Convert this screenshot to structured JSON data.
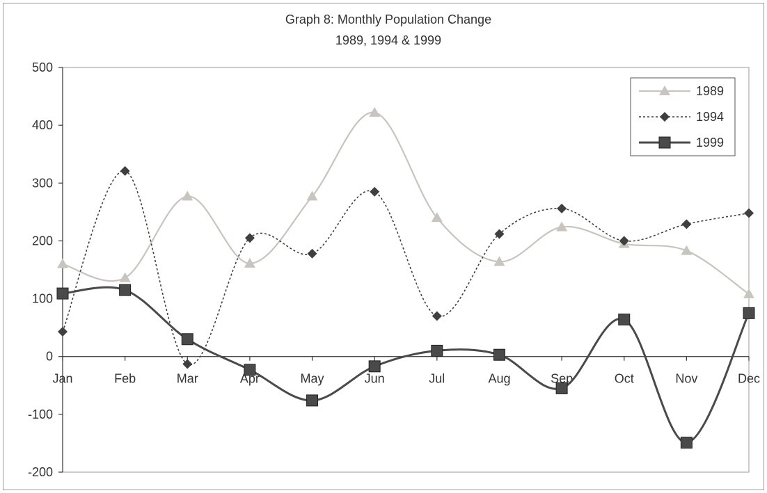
{
  "chart_data": {
    "type": "line",
    "title": "Graph 8: Monthly Population Change",
    "subtitle": "1989, 1994 & 1999",
    "categories": [
      "Jan",
      "Feb",
      "Mar",
      "Apr",
      "May",
      "Jun",
      "Jul",
      "Aug",
      "Sep",
      "Oct",
      "Nov",
      "Dec"
    ],
    "ylim": [
      -200,
      500
    ],
    "yticks": [
      -200,
      -100,
      0,
      100,
      200,
      300,
      400,
      500
    ],
    "grid": false,
    "legend_position": "top-right",
    "series": [
      {
        "name": "1989",
        "marker": "triangle",
        "line_style": "solid",
        "color": "#c8c4bf",
        "values": [
          160,
          136,
          277,
          161,
          277,
          422,
          240,
          164,
          224,
          195,
          183,
          108
        ]
      },
      {
        "name": "1994",
        "marker": "diamond",
        "line_style": "dotted",
        "color": "#3f3f3f",
        "values": [
          43,
          321,
          -13,
          205,
          178,
          285,
          70,
          212,
          256,
          200,
          229,
          248
        ]
      },
      {
        "name": "1999",
        "marker": "square",
        "line_style": "solid-thick",
        "color": "#4a4a4a",
        "values": [
          109,
          115,
          30,
          -23,
          -76,
          -17,
          10,
          3,
          -55,
          64,
          -149,
          75
        ]
      }
    ]
  }
}
